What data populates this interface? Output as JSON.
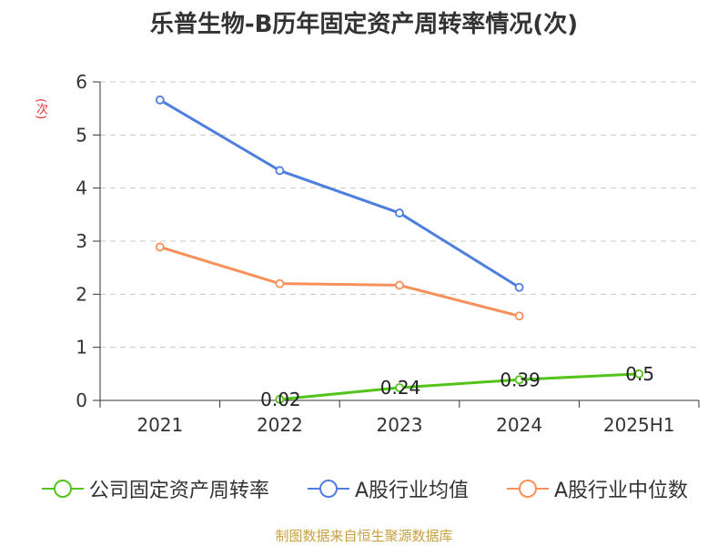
{
  "chart_data": {
    "type": "line",
    "title": "乐普生物-B历年固定资产周转率情况(次)",
    "ylabel": "(次)",
    "xlabel": "",
    "categories": [
      "2021",
      "2022",
      "2023",
      "2024",
      "2025H1"
    ],
    "ylim": [
      0,
      6
    ],
    "yticks": [
      0,
      1,
      2,
      3,
      4,
      5,
      6
    ],
    "grid": true,
    "legend_position": "bottom",
    "series": [
      {
        "name": "公司固定资产周转率",
        "color": "#52c41a",
        "values": [
          null,
          0.02,
          0.24,
          0.39,
          0.5
        ],
        "labels": [
          null,
          "0.02",
          "0.24",
          "0.39",
          "0.5"
        ]
      },
      {
        "name": "A股行业均值",
        "color": "#4e7fde",
        "values": [
          5.66,
          4.33,
          3.53,
          2.13,
          null
        ]
      },
      {
        "name": "A股行业中位数",
        "color": "#f7905a",
        "values": [
          2.89,
          2.2,
          2.17,
          1.59,
          null
        ]
      }
    ],
    "source": "制图数据来自恒生聚源数据库"
  }
}
